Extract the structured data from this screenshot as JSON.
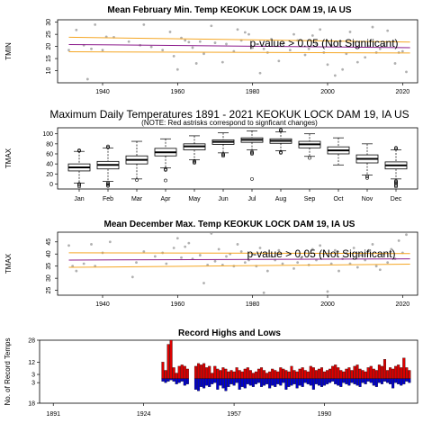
{
  "chart_data": [
    {
      "type": "scatter",
      "title": "Mean February Min. Temp KEOKUK LOCK DAM 19, IA US",
      "ylabel": "TMIN",
      "xlim": [
        1928,
        2024
      ],
      "ylim": [
        5,
        31
      ],
      "xticks": [
        1940,
        1960,
        1980,
        2000,
        2020
      ],
      "yticks": [
        10,
        15,
        20,
        25,
        30
      ],
      "annotation": "p-value > 0.05 (Not Significant)",
      "point_color": "#b0b0b0",
      "trend_color": "#8b1a8b",
      "band_color": "#f5a623",
      "trend": {
        "x": [
          1931,
          2022
        ],
        "y": [
          20.8,
          19.5
        ]
      },
      "band_upper": {
        "x": [
          1931,
          2022
        ],
        "y": [
          23.8,
          21.8
        ]
      },
      "band_lower": {
        "x": [
          1931,
          2022
        ],
        "y": [
          17.8,
          17.3
        ]
      },
      "x": [
        1931,
        1933,
        1935,
        1936,
        1937,
        1938,
        1940,
        1941,
        1943,
        1947,
        1950,
        1951,
        1953,
        1956,
        1958,
        1959,
        1960,
        1961,
        1962,
        1963,
        1964,
        1965,
        1966,
        1967,
        1969,
        1970,
        1972,
        1973,
        1975,
        1976,
        1977,
        1978,
        1979,
        1980,
        1982,
        1983,
        1984,
        1985,
        1987,
        1988,
        1990,
        1991,
        1992,
        1994,
        1995,
        1996,
        1997,
        1998,
        1999,
        2000,
        2001,
        2002,
        2004,
        2005,
        2006,
        2007,
        2008,
        2010,
        2011,
        2012,
        2013,
        2014,
        2015,
        2016,
        2018,
        2019,
        2020,
        2021
      ],
      "values": [
        18.5,
        26.8,
        20.5,
        6.5,
        19.0,
        29.0,
        18.5,
        24.0,
        23.8,
        22.0,
        20.5,
        29.0,
        19.8,
        18.5,
        26.0,
        16.0,
        10.5,
        23.5,
        22.5,
        21.8,
        19.5,
        13.0,
        22.0,
        17.0,
        28.5,
        21.5,
        13.5,
        21.0,
        18.0,
        27.0,
        22.5,
        25.8,
        25.0,
        19.5,
        9.0,
        19.0,
        17.5,
        23.0,
        14.0,
        21.0,
        18.5,
        25.0,
        22.5,
        16.5,
        19.0,
        24.5,
        21.0,
        27.0,
        17.5,
        12.5,
        20.5,
        8.0,
        10.5,
        17.0,
        26.0,
        22.0,
        13.5,
        15.5,
        20.0,
        28.0,
        17.5,
        19.0,
        20.5,
        26.5,
        13.0,
        17.5,
        18.0,
        9.5
      ]
    },
    {
      "type": "box",
      "title": "Maximum Daily Temperatures 1891 - 2021 KEOKUK LOCK DAM 19, IA US",
      "subtitle": "(NOTE: Red astrisks correspond to signficant changes)",
      "ylabel": "TMAX",
      "ylim": [
        -10,
        112
      ],
      "yticks": [
        0,
        20,
        40,
        60,
        80,
        100
      ],
      "categories": [
        "Jan",
        "Feb",
        "Mar",
        "Apr",
        "May",
        "Jun",
        "Jul",
        "Aug",
        "Sep",
        "Oct",
        "Nov",
        "Dec"
      ],
      "stats": [
        {
          "min": 2,
          "q1": 26,
          "median": 33,
          "q3": 40,
          "max": 65,
          "outliers": [
            -5,
            -2,
            0,
            66,
            67
          ]
        },
        {
          "min": 5,
          "q1": 30,
          "median": 38,
          "q3": 45,
          "max": 72,
          "outliers": [
            -4,
            -2,
            0,
            2,
            73,
            75
          ]
        },
        {
          "min": 10,
          "q1": 40,
          "median": 48,
          "q3": 56,
          "max": 85,
          "outliers": [
            8
          ]
        },
        {
          "min": 32,
          "q1": 56,
          "median": 63,
          "q3": 71,
          "max": 90,
          "outliers": [
            28,
            30,
            7
          ]
        },
        {
          "min": 48,
          "q1": 68,
          "median": 75,
          "q3": 80,
          "max": 96,
          "outliers": [
            44,
            46,
            42
          ]
        },
        {
          "min": 62,
          "q1": 79,
          "median": 84,
          "q3": 88,
          "max": 102,
          "outliers": [
            58,
            60,
            56
          ]
        },
        {
          "min": 68,
          "q1": 83,
          "median": 88,
          "q3": 92,
          "max": 106,
          "outliers": [
            62,
            64,
            60,
            10
          ]
        },
        {
          "min": 66,
          "q1": 81,
          "median": 86,
          "q3": 90,
          "max": 104,
          "outliers": [
            62,
            64,
            106,
            108
          ]
        },
        {
          "min": 55,
          "q1": 72,
          "median": 79,
          "q3": 85,
          "max": 100,
          "outliers": [
            52
          ]
        },
        {
          "min": 38,
          "q1": 60,
          "median": 67,
          "q3": 74,
          "max": 92,
          "outliers": []
        },
        {
          "min": 18,
          "q1": 42,
          "median": 50,
          "q3": 58,
          "max": 80,
          "outliers": [
            15,
            12
          ]
        },
        {
          "min": 10,
          "q1": 30,
          "median": 37,
          "q3": 44,
          "max": 68,
          "outliers": [
            -5,
            -3,
            0,
            2,
            4,
            6,
            70,
            72
          ]
        }
      ]
    },
    {
      "type": "scatter",
      "title": "Mean December Max. Temp KEOKUK LOCK DAM 19, IA US",
      "ylabel": "TMAX",
      "xlim": [
        1928,
        2024
      ],
      "ylim": [
        23,
        49
      ],
      "xticks": [
        1940,
        1960,
        1980,
        2000,
        2020
      ],
      "yticks": [
        25,
        30,
        35,
        40,
        45
      ],
      "annotation": "p-value > 0.05 (Not Significant)",
      "point_color": "#b0b0b0",
      "trend_color": "#8b1a8b",
      "band_color": "#f5a623",
      "trend": {
        "x": [
          1931,
          2022
        ],
        "y": [
          37.5,
          38.0
        ]
      },
      "band_upper": {
        "x": [
          1931,
          2022
        ],
        "y": [
          40.5,
          40.2
        ]
      },
      "band_lower": {
        "x": [
          1931,
          2022
        ],
        "y": [
          34.5,
          35.8
        ]
      },
      "x": [
        1931,
        1932,
        1933,
        1935,
        1937,
        1938,
        1940,
        1942,
        1948,
        1949,
        1951,
        1954,
        1956,
        1957,
        1959,
        1960,
        1961,
        1962,
        1963,
        1964,
        1966,
        1967,
        1968,
        1969,
        1970,
        1971,
        1972,
        1973,
        1974,
        1975,
        1976,
        1977,
        1978,
        1979,
        1980,
        1981,
        1982,
        1983,
        1984,
        1985,
        1986,
        1987,
        1988,
        1990,
        1991,
        1992,
        1993,
        1994,
        1995,
        1996,
        1997,
        1998,
        1999,
        2000,
        2001,
        2002,
        2003,
        2004,
        2005,
        2006,
        2007,
        2008,
        2009,
        2010,
        2011,
        2012,
        2013,
        2014,
        2015,
        2016,
        2017,
        2018,
        2019,
        2020,
        2021
      ],
      "values": [
        43.5,
        35.0,
        33.0,
        36.0,
        44.0,
        35.0,
        40.5,
        45.0,
        30.5,
        36.5,
        41.0,
        39.0,
        40.5,
        36.0,
        42.5,
        46.5,
        38.5,
        43.0,
        44.5,
        38.0,
        39.5,
        28.0,
        35.5,
        48.5,
        37.0,
        42.0,
        35.5,
        39.0,
        40.0,
        35.0,
        44.0,
        41.0,
        36.5,
        37.5,
        40.0,
        35.0,
        42.5,
        24.0,
        33.0,
        39.0,
        37.5,
        41.5,
        36.0,
        40.0,
        34.0,
        36.5,
        38.5,
        40.5,
        35.5,
        42.0,
        37.5,
        43.5,
        40.0,
        24.5,
        36.0,
        41.5,
        33.0,
        38.0,
        40.5,
        36.0,
        42.5,
        34.5,
        39.5,
        37.5,
        41.5,
        44.0,
        35.0,
        33.5,
        40.0,
        36.5,
        42.0,
        38.0,
        45.5,
        40.5,
        48.0
      ]
    },
    {
      "type": "bar",
      "title": "Record Highs and Lows",
      "ylabel": "No. of Record Temps",
      "xlim": [
        1886,
        2024
      ],
      "ylim": [
        -18,
        28
      ],
      "xticks": [
        1891,
        1924,
        1957,
        1990
      ],
      "yticks": [
        28,
        12,
        3,
        -3,
        -18
      ],
      "ytick_labels": [
        "28",
        "12",
        "3",
        "3",
        "18"
      ],
      "high_color": "#dd0000",
      "low_color": "#0000cc",
      "years": [
        1931,
        1932,
        1933,
        1934,
        1935,
        1936,
        1937,
        1938,
        1939,
        1940,
        1943,
        1944,
        1945,
        1946,
        1947,
        1948,
        1949,
        1950,
        1951,
        1952,
        1953,
        1954,
        1955,
        1956,
        1957,
        1958,
        1959,
        1960,
        1961,
        1962,
        1963,
        1964,
        1965,
        1966,
        1967,
        1968,
        1969,
        1970,
        1971,
        1972,
        1973,
        1974,
        1975,
        1976,
        1977,
        1978,
        1979,
        1980,
        1981,
        1982,
        1983,
        1984,
        1985,
        1986,
        1987,
        1988,
        1989,
        1990,
        1991,
        1992,
        1993,
        1994,
        1995,
        1996,
        1997,
        1998,
        1999,
        2000,
        2001,
        2002,
        2003,
        2004,
        2005,
        2006,
        2007,
        2008,
        2009,
        2010,
        2011,
        2012,
        2013,
        2014,
        2015,
        2016,
        2017,
        2018,
        2019,
        2020,
        2021
      ],
      "highs": [
        12,
        6,
        25,
        28,
        8,
        4,
        9,
        10,
        9,
        7,
        9,
        11,
        10,
        11,
        8,
        9,
        4,
        9,
        7,
        6,
        8,
        7,
        5,
        6,
        5,
        8,
        6,
        5,
        7,
        8,
        6,
        4,
        5,
        7,
        8,
        6,
        4,
        5,
        7,
        6,
        5,
        8,
        7,
        6,
        5,
        9,
        6,
        5,
        7,
        8,
        6,
        5,
        9,
        8,
        6,
        7,
        8,
        5,
        6,
        7,
        9,
        10,
        8,
        6,
        5,
        7,
        8,
        6,
        9,
        10,
        7,
        6,
        5,
        8,
        9,
        7,
        6,
        10,
        9,
        14,
        6,
        8,
        7,
        9,
        10,
        8,
        15,
        8,
        6
      ],
      "lows": [
        2,
        3,
        2,
        1,
        2,
        4,
        3,
        2,
        5,
        4,
        8,
        9,
        6,
        7,
        5,
        6,
        4,
        3,
        8,
        5,
        7,
        9,
        6,
        4,
        5,
        3,
        8,
        6,
        7,
        4,
        5,
        6,
        4,
        3,
        6,
        5,
        4,
        7,
        5,
        6,
        4,
        5,
        3,
        8,
        6,
        5,
        4,
        7,
        5,
        6,
        3,
        4,
        5,
        8,
        4,
        5,
        6,
        5,
        4,
        3,
        2,
        4,
        5,
        6,
        3,
        4,
        5,
        3,
        4,
        5,
        6,
        3,
        4,
        2,
        3,
        5,
        6,
        3,
        4,
        2,
        3,
        4,
        7,
        3,
        4,
        5,
        4,
        2,
        3
      ]
    }
  ]
}
